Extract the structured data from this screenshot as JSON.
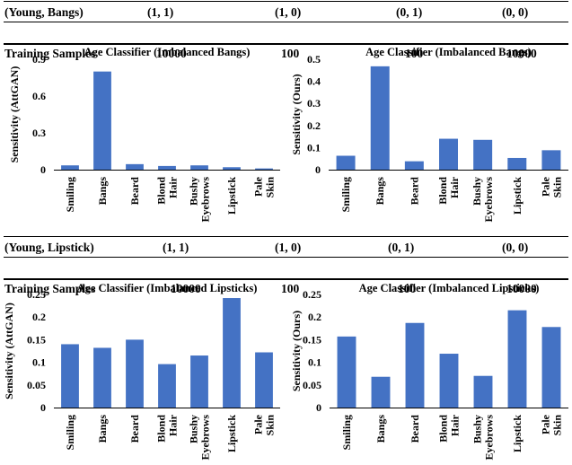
{
  "tables": [
    {
      "header": [
        "(Young, Bangs)",
        "(1, 1)",
        "(1, 0)",
        "(0, 1)",
        "(0, 0)"
      ],
      "row_label": "Training Samples",
      "row_values": [
        "10000",
        "100",
        "100",
        "10000"
      ]
    },
    {
      "header": [
        "(Young, Lipstick)",
        "(1, 1)",
        "(1, 0)",
        "(0, 1)",
        "(0, 0)"
      ],
      "row_label": "Training Samples",
      "row_values": [
        "10000",
        "100",
        "100",
        "10000"
      ]
    }
  ],
  "colors": {
    "bar": "#4472C4",
    "axis": "#000000",
    "table_rule": "#000000"
  },
  "chart_data": [
    {
      "type": "bar",
      "title": "Age Classifier (Imbalanced Bangs)",
      "ylabel": "Sensitivity (AttGAN)",
      "categories": [
        "Smiling",
        "Bangs",
        "Beard",
        "Blond Hair",
        "Bushy Eyebrows",
        "Lipstick",
        "Pale Skin"
      ],
      "values": [
        0.035,
        0.8,
        0.045,
        0.03,
        0.035,
        0.02,
        0.01
      ],
      "ylim": [
        0,
        0.9
      ],
      "yticks": [
        "0",
        "0.3",
        "0.6",
        "0.9"
      ],
      "grid": false
    },
    {
      "type": "bar",
      "title": "Age Classifier (Imbalanced Bangs)",
      "ylabel": "Sensitivity (Ours)",
      "categories": [
        "Smiling",
        "Bangs",
        "Beard",
        "Blond Hair",
        "Bushy Eyebrows",
        "Lipstick",
        "Pale Skin"
      ],
      "values": [
        0.063,
        0.468,
        0.038,
        0.14,
        0.135,
        0.053,
        0.088
      ],
      "ylim": [
        0,
        0.5
      ],
      "yticks": [
        "0",
        "0.1",
        "0.2",
        "0.3",
        "0.4",
        "0.5"
      ],
      "grid": false
    },
    {
      "type": "bar",
      "title": "Age Classifier (Imbalanced Lipsticks)",
      "ylabel": "Sensitivity (AttGAN)",
      "categories": [
        "Smiling",
        "Bangs",
        "Beard",
        "Blond Hair",
        "Bushy Eyebrows",
        "Lipstick",
        "Pale Skin"
      ],
      "values": [
        0.14,
        0.132,
        0.15,
        0.096,
        0.115,
        0.242,
        0.122
      ],
      "ylim": [
        0,
        0.25
      ],
      "yticks": [
        "0",
        "0.05",
        "0.1",
        "0.15",
        "0.2",
        "0.25"
      ],
      "grid": false
    },
    {
      "type": "bar",
      "title": "Age Classifier (Imbalanced Lipsticks)",
      "ylabel": "Sensitivity (Ours)",
      "categories": [
        "Smiling",
        "Bangs",
        "Beard",
        "Blond Hair",
        "Bushy Eyebrows",
        "Lipstick",
        "Pale Skin"
      ],
      "values": [
        0.157,
        0.068,
        0.187,
        0.119,
        0.07,
        0.215,
        0.178
      ],
      "ylim": [
        0,
        0.25
      ],
      "yticks": [
        "0",
        "0.05",
        "0.1",
        "0.15",
        "0.2",
        "0.25"
      ],
      "grid": false
    }
  ]
}
